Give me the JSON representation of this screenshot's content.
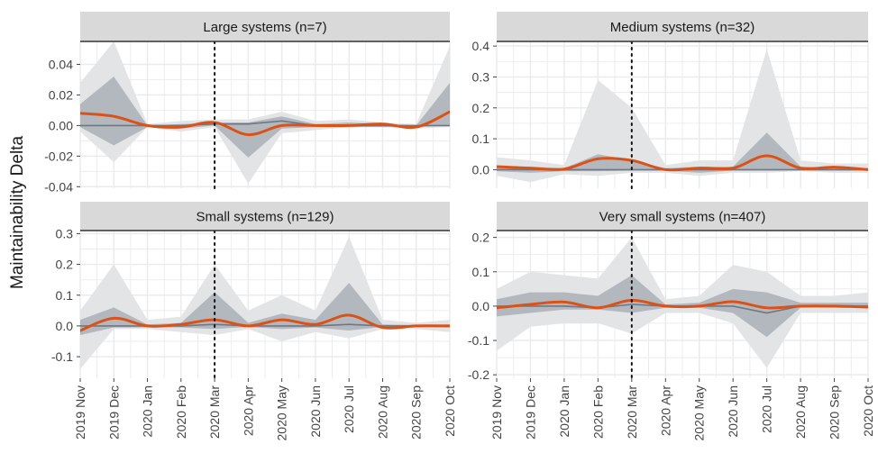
{
  "chart_data": {
    "type": "area",
    "ylabel": "Maintainability Delta",
    "x_ticks": [
      "2019 Nov",
      "2019 Dec",
      "2020 Jan",
      "2020 Feb",
      "2020 Mar",
      "2020 Apr",
      "2020 May",
      "2020 Jun",
      "2020 Jul",
      "2020 Aug",
      "2020 Sep",
      "2020 Oct"
    ],
    "vline_at": "2020 Mar",
    "grid": true,
    "colors": {
      "line": "#d95319",
      "band_outer": "#e3e4e6",
      "band_inner": "#b3b8bf",
      "median": "#6f7782",
      "panel_bg": "#ffffff",
      "grid": "#ebebeb",
      "strip_bg": "#d9d9d9"
    },
    "panels": [
      {
        "title": "Large systems (n=7)",
        "ylim": [
          -0.041,
          0.055
        ],
        "y_ticks": [
          -0.04,
          -0.02,
          0.0,
          0.02,
          0.04
        ],
        "y_tick_labels": [
          "-0.04",
          "-0.02",
          "0.00",
          "0.02",
          "0.04"
        ],
        "outer_lo": [
          -0.004,
          -0.024,
          -0.001,
          -0.004,
          -0.001,
          -0.038,
          -0.005,
          -0.003,
          -0.001,
          -0.001,
          -0.002,
          -0.001
        ],
        "outer_hi": [
          0.028,
          0.055,
          0.001,
          0.003,
          0.004,
          0.004,
          0.009,
          0.003,
          0.004,
          0.002,
          0.001,
          0.052
        ],
        "inner_lo": [
          -0.001,
          -0.013,
          -0.001,
          -0.002,
          0.0,
          -0.021,
          -0.002,
          -0.001,
          -0.001,
          -0.001,
          -0.001,
          0.0
        ],
        "inner_hi": [
          0.014,
          0.032,
          0.0,
          0.001,
          0.002,
          0.002,
          0.006,
          0.001,
          0.002,
          0.001,
          0.0,
          0.028
        ],
        "median": [
          0.0,
          0.0,
          0.0,
          0.0,
          0.001,
          0.001,
          0.003,
          0.0,
          0.0,
          0.0,
          0.0,
          0.0
        ],
        "smooth": [
          0.008,
          0.006,
          0.0,
          -0.001,
          0.002,
          -0.006,
          0.0,
          0.0,
          0.0,
          0.001,
          -0.001,
          0.009
        ]
      },
      {
        "title": "Medium systems (n=32)",
        "ylim": [
          -0.06,
          0.415
        ],
        "y_ticks": [
          0.0,
          0.1,
          0.2,
          0.3,
          0.4
        ],
        "y_tick_labels": [
          "0.0",
          "0.1",
          "0.2",
          "0.3",
          "0.4"
        ],
        "outer_lo": [
          -0.02,
          -0.04,
          -0.015,
          -0.02,
          -0.01,
          -0.01,
          -0.02,
          -0.01,
          -0.01,
          -0.005,
          -0.01,
          -0.01
        ],
        "outer_hi": [
          0.04,
          0.03,
          0.015,
          0.29,
          0.2,
          0.015,
          0.03,
          0.03,
          0.39,
          0.03,
          0.02,
          0.02
        ],
        "inner_lo": [
          -0.005,
          -0.01,
          -0.005,
          -0.005,
          -0.003,
          -0.003,
          -0.01,
          -0.003,
          -0.003,
          -0.002,
          -0.003,
          -0.003
        ],
        "inner_hi": [
          0.01,
          0.01,
          0.005,
          0.05,
          0.03,
          0.005,
          0.01,
          0.01,
          0.12,
          0.01,
          0.005,
          0.005
        ],
        "median": [
          0.0,
          0.0,
          0.0,
          0.0,
          0.0,
          0.0,
          0.0,
          0.0,
          0.0,
          0.0,
          0.0,
          0.0
        ],
        "smooth": [
          0.01,
          0.005,
          0.002,
          0.035,
          0.03,
          0.0,
          0.005,
          0.005,
          0.045,
          0.005,
          0.008,
          0.0
        ]
      },
      {
        "title": "Small systems (n=129)",
        "ylim": [
          -0.17,
          0.31
        ],
        "y_ticks": [
          -0.1,
          0.0,
          0.1,
          0.2,
          0.3
        ],
        "y_tick_labels": [
          "-0.1",
          "0.0",
          "0.1",
          "0.2",
          "0.3"
        ],
        "outer_lo": [
          -0.14,
          -0.01,
          -0.01,
          -0.02,
          -0.03,
          -0.01,
          -0.05,
          -0.02,
          -0.04,
          -0.01,
          -0.01,
          -0.02
        ],
        "outer_hi": [
          0.05,
          0.2,
          0.02,
          0.03,
          0.2,
          0.05,
          0.1,
          0.05,
          0.29,
          0.02,
          0.01,
          0.02
        ],
        "inner_lo": [
          -0.03,
          -0.005,
          -0.005,
          -0.005,
          -0.01,
          -0.003,
          -0.01,
          -0.005,
          -0.015,
          -0.003,
          -0.003,
          -0.005
        ],
        "inner_hi": [
          0.02,
          0.06,
          0.005,
          0.01,
          0.11,
          0.01,
          0.04,
          0.02,
          0.14,
          0.005,
          0.003,
          0.005
        ],
        "median": [
          0.0,
          0.0,
          0.0,
          0.0,
          0.005,
          0.0,
          0.0,
          0.0,
          0.005,
          0.0,
          0.0,
          0.0
        ],
        "smooth": [
          -0.015,
          0.025,
          0.0,
          0.005,
          0.02,
          0.0,
          0.02,
          0.005,
          0.035,
          -0.005,
          0.0,
          0.0
        ]
      },
      {
        "title": "Very small systems (n=407)",
        "ylim": [
          -0.21,
          0.22
        ],
        "y_ticks": [
          -0.2,
          -0.1,
          0.0,
          0.1,
          0.2
        ],
        "y_tick_labels": [
          "-0.2",
          "-0.1",
          "0.0",
          "0.1",
          "0.2"
        ],
        "outer_lo": [
          -0.13,
          -0.06,
          -0.05,
          -0.05,
          -0.08,
          -0.02,
          -0.02,
          -0.05,
          -0.18,
          -0.02,
          -0.02,
          -0.02
        ],
        "outer_hi": [
          0.05,
          0.1,
          0.09,
          0.08,
          0.2,
          0.02,
          0.03,
          0.12,
          0.1,
          0.03,
          0.03,
          0.04
        ],
        "inner_lo": [
          -0.03,
          -0.02,
          -0.01,
          -0.01,
          -0.02,
          -0.005,
          -0.005,
          -0.02,
          -0.09,
          -0.005,
          -0.005,
          -0.005
        ],
        "inner_hi": [
          0.02,
          0.04,
          0.04,
          0.03,
          0.09,
          0.005,
          0.01,
          0.05,
          0.04,
          0.01,
          0.01,
          0.01
        ],
        "median": [
          0.0,
          0.0,
          0.0,
          -0.005,
          0.005,
          0.0,
          0.0,
          0.0,
          -0.02,
          0.0,
          0.0,
          0.0
        ],
        "smooth": [
          -0.005,
          0.005,
          0.012,
          -0.005,
          0.017,
          0.0,
          0.0,
          0.013,
          -0.005,
          0.0,
          0.0,
          -0.003
        ]
      }
    ]
  }
}
